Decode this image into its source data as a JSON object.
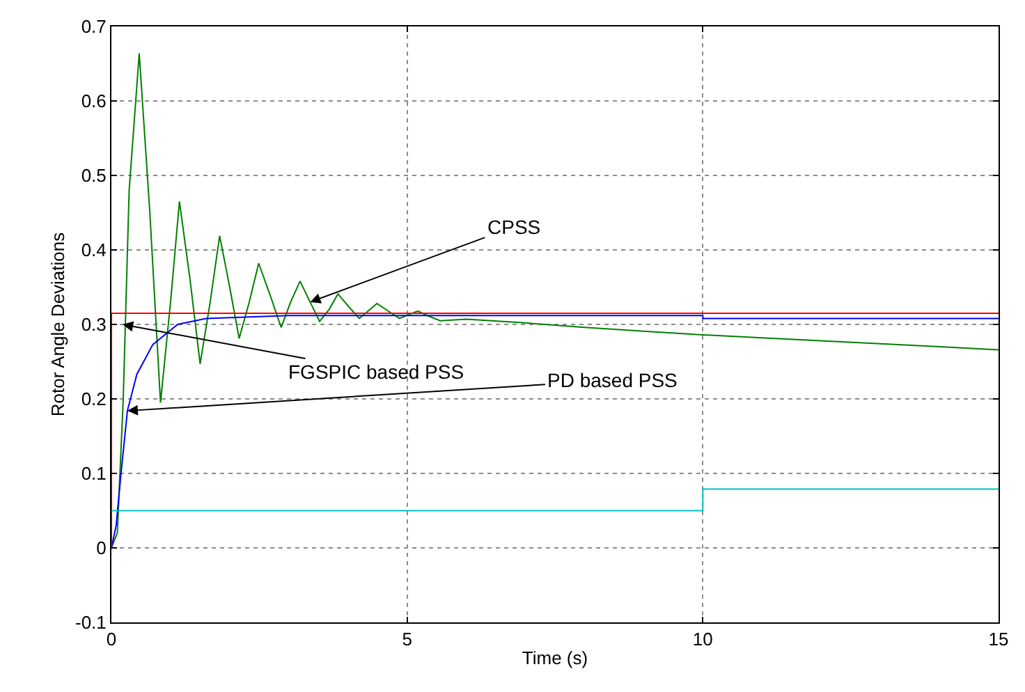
{
  "chart_data": {
    "type": "line",
    "xlabel": "Time (s)",
    "ylabel": "Rotor Angle Deviations",
    "xlim": [
      0,
      15
    ],
    "xticks": [
      0,
      5,
      10,
      15
    ],
    "ylim": [
      -0.1,
      0.7
    ],
    "yticks": [
      -0.1,
      0,
      0.1,
      0.2,
      0.3,
      0.4,
      0.5,
      0.6,
      0.7
    ],
    "grid": true,
    "line_style": "solid",
    "marker": "none",
    "series": [
      {
        "color": "#008000",
        "x": [
          0,
          0.1,
          0.2,
          0.3,
          0.47,
          0.65,
          0.83,
          1.0,
          1.15,
          1.33,
          1.5,
          1.67,
          1.83,
          2.0,
          2.16,
          2.33,
          2.49,
          2.68,
          2.87,
          3.03,
          3.19,
          3.36,
          3.52,
          3.68,
          3.83,
          4.0,
          4.19,
          4.34,
          4.49,
          4.68,
          4.87,
          5.02,
          5.18,
          5.37,
          5.56,
          6.0,
          7.0,
          8.0,
          9.0,
          10.0,
          11.0,
          12.0,
          13.0,
          14.0,
          15.0
        ],
        "values": [
          0,
          0.02,
          0.2,
          0.48,
          0.664,
          0.45,
          0.195,
          0.33,
          0.465,
          0.36,
          0.247,
          0.33,
          0.419,
          0.35,
          0.281,
          0.33,
          0.382,
          0.34,
          0.296,
          0.33,
          0.358,
          0.33,
          0.304,
          0.32,
          0.341,
          0.325,
          0.308,
          0.318,
          0.328,
          0.318,
          0.308,
          0.313,
          0.318,
          0.311,
          0.305,
          0.307,
          0.302,
          0.296,
          0.291,
          0.286,
          0.282,
          0.278,
          0.274,
          0.27,
          0.266
        ]
      },
      {
        "color": "#0000ff",
        "x": [
          0,
          0.08,
          0.16,
          0.27,
          0.43,
          0.7,
          1.12,
          1.6,
          3.0,
          10.0,
          10.0,
          15.0
        ],
        "values": [
          0,
          0.03,
          0.098,
          0.184,
          0.233,
          0.273,
          0.3,
          0.308,
          0.312,
          0.312,
          0.308,
          0.308
        ]
      },
      {
        "color": "#ff0000",
        "x": [
          0,
          0,
          15
        ],
        "values": [
          0,
          0.315,
          0.315
        ]
      },
      {
        "color": "#00bfbf",
        "x": [
          0,
          10,
          10,
          15
        ],
        "values": [
          0.05,
          0.05,
          0.079,
          0.079
        ]
      }
    ],
    "annotations": [
      {
        "text": "CPSS",
        "x": 3.36,
        "y": 0.33
      },
      {
        "text": "PD based PSS",
        "x": 0.27,
        "y": 0.184
      },
      {
        "text": "FGSPIC based PSS",
        "x": 0.19,
        "y": 0.3
      }
    ]
  }
}
